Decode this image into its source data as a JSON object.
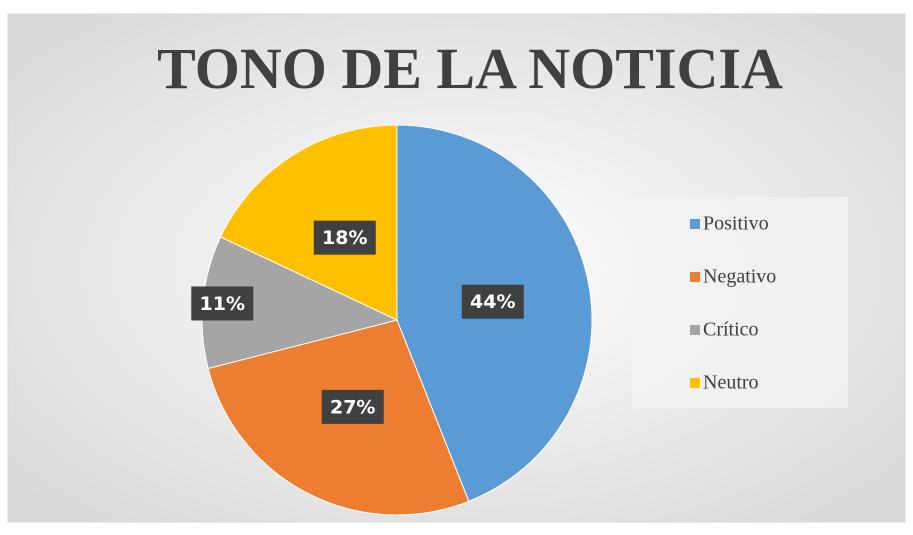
{
  "chart_data": {
    "type": "pie",
    "title": "TONO DE LA NOTICIA",
    "categories": [
      "Positivo",
      "Negativo",
      "Crítico",
      "Neutro"
    ],
    "values": [
      44,
      27,
      11,
      18
    ],
    "value_labels": [
      "44%",
      "27%",
      "11%",
      "18%"
    ],
    "colors": [
      "#5B9BD5",
      "#ED7D31",
      "#A5A5A5",
      "#FFC000"
    ],
    "legend": "right"
  }
}
